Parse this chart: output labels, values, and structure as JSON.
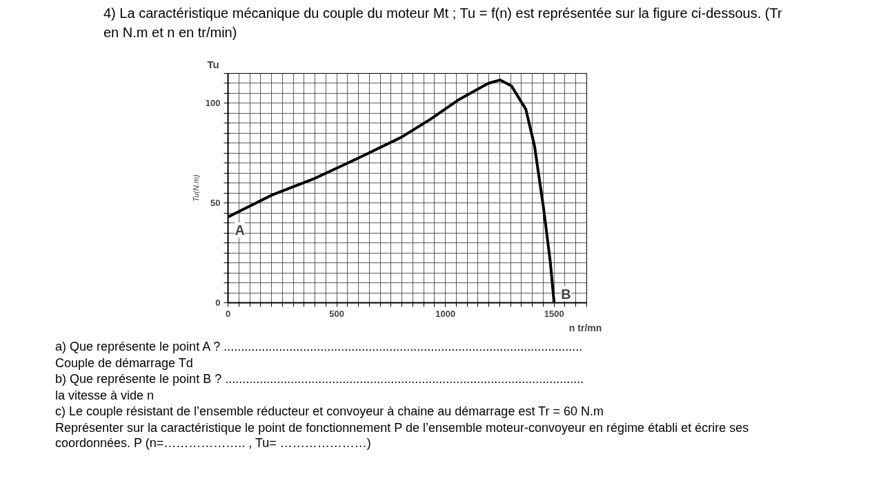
{
  "chart_data": {
    "type": "line",
    "title": "4)  La caractéristique mécanique du couple du moteur Mt ; Tu = f(n) est représentée sur la figure ci-dessous.  (Tr en N.m et   n en tr/min)",
    "xlabel": "n  tr/mn",
    "ylabel": "Tu(N.m)",
    "x": [
      0,
      202,
      402,
      601,
      798,
      931,
      1064,
      1197,
      1251,
      1304,
      1370,
      1410,
      1451,
      1483,
      1500
    ],
    "series": [
      {
        "color": "#000000",
        "values": [
          43,
          54,
          62.5,
          72.6,
          83,
          92,
          102,
          110,
          111.7,
          108.7,
          97,
          78.6,
          47.8,
          20,
          0
        ]
      }
    ],
    "xlim": [
      0,
      1650
    ],
    "ylim": [
      0,
      115
    ],
    "xticks": [
      0,
      {
        "value": 50,
        "label": null
      },
      {
        "value": 100,
        "label": null
      },
      {
        "value": 150,
        "label": null
      },
      {
        "value": 200,
        "label": null
      },
      {
        "value": 250,
        "label": null
      },
      {
        "value": 300,
        "label": null
      },
      {
        "value": 350,
        "label": null
      },
      {
        "value": 400,
        "label": null
      },
      {
        "value": 450,
        "label": null
      },
      500,
      {
        "value": 550,
        "label": null
      },
      {
        "value": 600,
        "label": null
      },
      {
        "value": 650,
        "label": null
      },
      {
        "value": 700,
        "label": null
      },
      {
        "value": 750,
        "label": null
      },
      {
        "value": 800,
        "label": null
      },
      {
        "value": 850,
        "label": null
      },
      {
        "value": 900,
        "label": null
      },
      {
        "value": 950,
        "label": null
      },
      1000,
      {
        "value": 1050,
        "label": null
      },
      {
        "value": 1100,
        "label": null
      },
      {
        "value": 1150,
        "label": null
      },
      {
        "value": 1200,
        "label": null
      },
      {
        "value": 1250,
        "label": null
      },
      {
        "value": 1300,
        "label": null
      },
      {
        "value": 1350,
        "label": null
      },
      {
        "value": 1400,
        "label": null
      },
      {
        "value": 1450,
        "label": null
      },
      1500,
      {
        "value": 1550,
        "label": null
      },
      {
        "value": 1600,
        "label": null
      },
      {
        "value": 1650,
        "label": null
      }
    ],
    "yticks": [
      0,
      {
        "value": 5,
        "label": null
      },
      {
        "value": 10,
        "label": null
      },
      {
        "value": 15,
        "label": null
      },
      {
        "value": 20,
        "label": null
      },
      {
        "value": 25,
        "label": null
      },
      {
        "value": 30,
        "label": null
      },
      {
        "value": 35,
        "label": null
      },
      {
        "value": 40,
        "label": null
      },
      {
        "value": 45,
        "label": null
      },
      50,
      {
        "value": 55,
        "label": null
      },
      {
        "value": 60,
        "label": null
      },
      {
        "value": 65,
        "label": null
      },
      {
        "value": 70,
        "label": null
      },
      {
        "value": 75,
        "label": null
      },
      {
        "value": 80,
        "label": null
      },
      {
        "value": 85,
        "label": null
      },
      {
        "value": 90,
        "label": null
      },
      {
        "value": 95,
        "label": null
      },
      100,
      {
        "value": 105,
        "label": null
      },
      {
        "value": 110,
        "label": null
      },
      {
        "value": 115,
        "label": null
      }
    ],
    "grid": true,
    "marker": "none",
    "line_style": "solid",
    "annotations": [
      "Tu",
      {
        "text": "A",
        "x": 0,
        "y": 43
      },
      {
        "text": "B",
        "x": 1500,
        "y": 0
      },
      "a)   Que représente le point A ? ........................................................................................................",
      "Couple de démarrage Td",
      "b)   Que représente le point B ? ........................................................................................................",
      "la vitesse à vide n",
      "c)   Le couple résistant de l’ensemble réducteur et convoyeur à chaine au démarrage est Tr = 60 N.m",
      "Représenter sur la caractéristique le point de fonctionnement P de l’ensemble moteur-convoyeur en régime établi et écrire ses coordonnées.                    P (n=……………….. , Tu= …………………)"
    ]
  }
}
